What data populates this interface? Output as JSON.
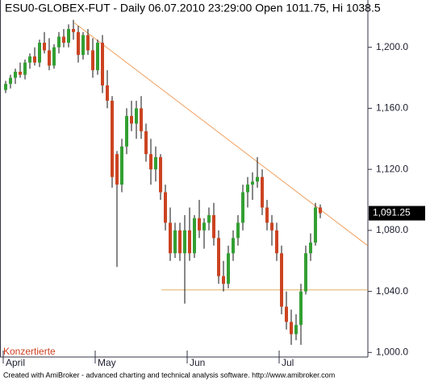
{
  "chart_data": {
    "type": "candlestick",
    "title": "ESU0-GLOBEX-FUT - Daily 06.07.2010 23:29:00 Open 1011.75, Hi 1038.5",
    "footer": "Created with AmiBroker - advanced charting and technical analysis software. http://www.amibroker.com",
    "watermark": "Konzertierte",
    "categories": [
      "April",
      null,
      null,
      null,
      null,
      null,
      null,
      null,
      null,
      null,
      null,
      null,
      null,
      null,
      null,
      null,
      null,
      null,
      null,
      "May",
      null,
      null,
      null,
      null,
      null,
      null,
      null,
      null,
      null,
      null,
      null,
      null,
      null,
      null,
      null,
      null,
      null,
      null,
      "Jun",
      null,
      null,
      null,
      null,
      null,
      null,
      null,
      null,
      null,
      null,
      null,
      null,
      null,
      null,
      null,
      null,
      null,
      null,
      "Jul",
      null,
      null,
      null,
      null,
      null,
      null,
      null,
      null
    ],
    "open": [
      1172,
      1176,
      1180,
      1184,
      1182,
      1190,
      1194,
      1190,
      1203,
      1198,
      1188,
      1200,
      1207,
      1203,
      1212,
      1210,
      1195,
      1208,
      1198,
      1185,
      1203,
      1175,
      1165,
      1130,
      1110,
      1135,
      1155,
      1150,
      1160,
      1145,
      1130,
      1120,
      1128,
      1105,
      1085,
      1065,
      1080,
      1065,
      1080,
      1065,
      1088,
      1080,
      1085,
      1090,
      1075,
      1050,
      1045,
      1065,
      1075,
      1085,
      1105,
      1110,
      1112,
      1115,
      1095,
      1085,
      1080,
      1065,
      1030,
      1020,
      1012,
      1018,
      1040,
      1065,
      1072,
      1095
    ],
    "high": [
      1178,
      1182,
      1186,
      1190,
      1192,
      1196,
      1200,
      1205,
      1210,
      1206,
      1202,
      1210,
      1212,
      1215,
      1218,
      1214,
      1210,
      1212,
      1206,
      1205,
      1208,
      1185,
      1168,
      1132,
      1140,
      1160,
      1165,
      1165,
      1168,
      1150,
      1140,
      1135,
      1130,
      1110,
      1095,
      1085,
      1085,
      1090,
      1095,
      1090,
      1100,
      1088,
      1095,
      1098,
      1080,
      1060,
      1070,
      1080,
      1090,
      1110,
      1115,
      1118,
      1128,
      1120,
      1100,
      1090,
      1085,
      1070,
      1040,
      1028,
      1025,
      1045,
      1070,
      1078,
      1098,
      1097
    ],
    "low": [
      1170,
      1173,
      1176,
      1180,
      1179,
      1186,
      1188,
      1187,
      1196,
      1185,
      1186,
      1196,
      1200,
      1200,
      1205,
      1190,
      1192,
      1195,
      1180,
      1182,
      1170,
      1160,
      1108,
      1056,
      1105,
      1130,
      1145,
      1140,
      1140,
      1125,
      1110,
      1112,
      1100,
      1080,
      1060,
      1062,
      1060,
      1032,
      1060,
      1062,
      1075,
      1068,
      1080,
      1070,
      1045,
      1040,
      1042,
      1060,
      1070,
      1080,
      1095,
      1100,
      1108,
      1090,
      1080,
      1070,
      1060,
      1025,
      1015,
      1005,
      1008,
      1005,
      1038,
      1060,
      1070,
      1088
    ],
    "close": [
      1176,
      1180,
      1184,
      1182,
      1190,
      1194,
      1190,
      1203,
      1198,
      1188,
      1200,
      1207,
      1203,
      1212,
      1210,
      1195,
      1208,
      1198,
      1185,
      1203,
      1175,
      1165,
      1115,
      1110,
      1135,
      1155,
      1150,
      1160,
      1145,
      1130,
      1120,
      1128,
      1105,
      1085,
      1065,
      1080,
      1065,
      1080,
      1065,
      1088,
      1080,
      1085,
      1090,
      1075,
      1050,
      1045,
      1065,
      1075,
      1085,
      1105,
      1110,
      1112,
      1115,
      1095,
      1085,
      1080,
      1065,
      1030,
      1020,
      1012,
      1018,
      1040,
      1065,
      1072,
      1095,
      1091.25
    ],
    "up_color": "#33a033",
    "down_color": "#cc4422",
    "ylim": [
      997,
      1231
    ],
    "yticks": [
      {
        "value": 1000,
        "label": "1,000.0"
      },
      {
        "value": 1040,
        "label": "1,040.0"
      },
      {
        "value": 1080,
        "label": "1,080.0"
      },
      {
        "value": 1120,
        "label": "1,120.0"
      },
      {
        "value": 1160,
        "label": "1,160.0"
      },
      {
        "value": 1200,
        "label": "1,200.0"
      }
    ],
    "last_price": {
      "value": 1091.25,
      "label": "1,091.25"
    },
    "lines": [
      {
        "x": [
          14.2,
          74.8
        ],
        "y": [
          1216,
          1070
        ],
        "color": "#f0a060"
      },
      {
        "x": [
          32.2,
          74.8
        ],
        "y": [
          1041,
          1041
        ],
        "color": "#e0b060"
      }
    ]
  }
}
